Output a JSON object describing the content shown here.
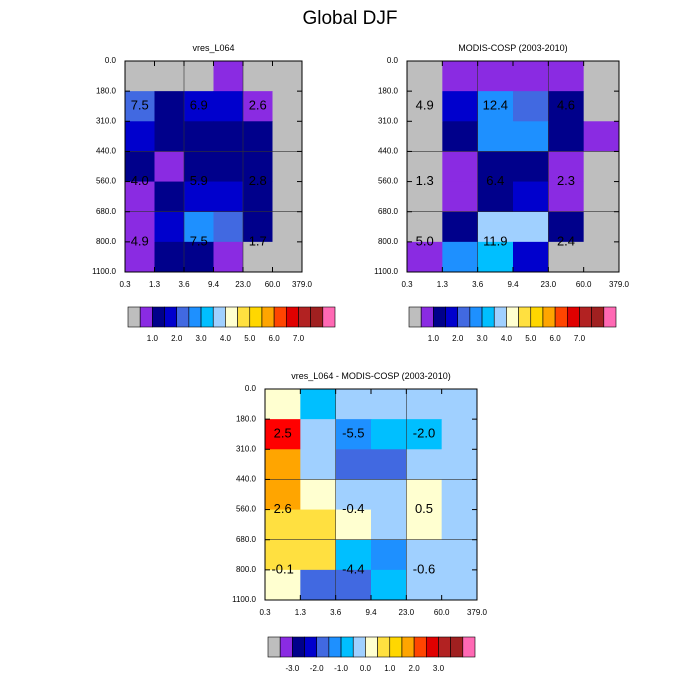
{
  "figure": {
    "title": "Global DJF"
  },
  "chart_data": [
    {
      "type": "heatmap",
      "title": "vres_L064",
      "x_ticks": [
        "0.3",
        "1.3",
        "3.6",
        "9.4",
        "23.0",
        "60.0",
        "379.0"
      ],
      "y_ticks": [
        "0.0",
        "180.0",
        "310.0",
        "440.0",
        "560.0",
        "680.0",
        "800.0",
        "1100.0"
      ],
      "cells": [
        [
          "#bebebe",
          "#bebebe",
          "#bebebe",
          "#8a2be2",
          "#bebebe",
          "#bebebe"
        ],
        [
          "#4169e1",
          "#00008b",
          "#0000cd",
          "#0000cd",
          "#8a2be2",
          "#bebebe"
        ],
        [
          "#0000cd",
          "#00008b",
          "#00008b",
          "#00008b",
          "#00008b",
          "#bebebe"
        ],
        [
          "#00008b",
          "#8a2be2",
          "#00008b",
          "#00008b",
          "#00008b",
          "#bebebe"
        ],
        [
          "#8a2be2",
          "#00008b",
          "#0000cd",
          "#0000cd",
          "#00008b",
          "#bebebe"
        ],
        [
          "#8a2be2",
          "#0000cd",
          "#1e90ff",
          "#4169e1",
          "#00008b",
          "#bebebe"
        ],
        [
          "#8a2be2",
          "#00008b",
          "#00008b",
          "#8a2be2",
          "#bebebe",
          "#bebebe"
        ]
      ],
      "labels": [
        {
          "text": "7.5",
          "col": 0.5,
          "row": 1.5
        },
        {
          "text": "6.9",
          "col": 2.5,
          "row": 1.5
        },
        {
          "text": "2.6",
          "col": 4.5,
          "row": 1.5
        },
        {
          "text": "4.0",
          "col": 0.5,
          "row": 4.0
        },
        {
          "text": "5.9",
          "col": 2.5,
          "row": 4.0
        },
        {
          "text": "2.8",
          "col": 4.5,
          "row": 4.0
        },
        {
          "text": "4.9",
          "col": 0.5,
          "row": 6.0
        },
        {
          "text": "7.5",
          "col": 2.5,
          "row": 6.0
        },
        {
          "text": "1.7",
          "col": 4.5,
          "row": 6.0
        }
      ],
      "colorbar": {
        "colors": [
          "#bebebe",
          "#8a2be2",
          "#00008b",
          "#0000cd",
          "#4169e1",
          "#1e90ff",
          "#00bfff",
          "#a0d0ff",
          "#ffffd0",
          "#ffe040",
          "#ffd700",
          "#ffa500",
          "#ff4500",
          "#e00000",
          "#b22222",
          "#a02020",
          "#ff69b4"
        ],
        "labels": [
          {
            "text": "1.0",
            "at": 2
          },
          {
            "text": "2.0",
            "at": 4
          },
          {
            "text": "3.0",
            "at": 6
          },
          {
            "text": "4.0",
            "at": 8
          },
          {
            "text": "5.0",
            "at": 10
          },
          {
            "text": "6.0",
            "at": 12
          },
          {
            "text": "7.0",
            "at": 14
          }
        ]
      }
    },
    {
      "type": "heatmap",
      "title": "MODIS-COSP (2003-2010)",
      "x_ticks": [
        "0.3",
        "1.3",
        "3.6",
        "9.4",
        "23.0",
        "60.0",
        "379.0"
      ],
      "y_ticks": [
        "0.0",
        "180.0",
        "310.0",
        "440.0",
        "560.0",
        "680.0",
        "800.0",
        "1100.0"
      ],
      "cells": [
        [
          "#bebebe",
          "#8a2be2",
          "#8a2be2",
          "#8a2be2",
          "#8a2be2",
          "#bebebe"
        ],
        [
          "#bebebe",
          "#0000cd",
          "#1e90ff",
          "#4169e1",
          "#00008b",
          "#bebebe"
        ],
        [
          "#bebebe",
          "#00008b",
          "#1e90ff",
          "#1e90ff",
          "#00008b",
          "#8a2be2"
        ],
        [
          "#bebebe",
          "#8a2be2",
          "#00008b",
          "#00008b",
          "#8a2be2",
          "#bebebe"
        ],
        [
          "#bebebe",
          "#8a2be2",
          "#00008b",
          "#0000cd",
          "#8a2be2",
          "#bebebe"
        ],
        [
          "#bebebe",
          "#00008b",
          "#a0d0ff",
          "#a0d0ff",
          "#00008b",
          "#bebebe"
        ],
        [
          "#8a2be2",
          "#1e90ff",
          "#00bfff",
          "#0000cd",
          "#bebebe",
          "#bebebe"
        ]
      ],
      "labels": [
        {
          "text": "4.9",
          "col": 0.5,
          "row": 1.5
        },
        {
          "text": "12.4",
          "col": 2.5,
          "row": 1.5
        },
        {
          "text": "4.6",
          "col": 4.5,
          "row": 1.5
        },
        {
          "text": "1.3",
          "col": 0.5,
          "row": 4.0
        },
        {
          "text": "6.4",
          "col": 2.5,
          "row": 4.0
        },
        {
          "text": "2.3",
          "col": 4.5,
          "row": 4.0
        },
        {
          "text": "5.0",
          "col": 0.5,
          "row": 6.0
        },
        {
          "text": "11.9",
          "col": 2.5,
          "row": 6.0
        },
        {
          "text": "2.4",
          "col": 4.5,
          "row": 6.0
        }
      ],
      "colorbar": {
        "colors": [
          "#bebebe",
          "#8a2be2",
          "#00008b",
          "#0000cd",
          "#4169e1",
          "#1e90ff",
          "#00bfff",
          "#a0d0ff",
          "#ffffd0",
          "#ffe040",
          "#ffd700",
          "#ffa500",
          "#ff4500",
          "#e00000",
          "#b22222",
          "#a02020",
          "#ff69b4"
        ],
        "labels": [
          {
            "text": "1.0",
            "at": 2
          },
          {
            "text": "2.0",
            "at": 4
          },
          {
            "text": "3.0",
            "at": 6
          },
          {
            "text": "4.0",
            "at": 8
          },
          {
            "text": "5.0",
            "at": 10
          },
          {
            "text": "6.0",
            "at": 12
          },
          {
            "text": "7.0",
            "at": 14
          }
        ]
      }
    },
    {
      "type": "heatmap",
      "title": "vres_L064 - MODIS-COSP (2003-2010)",
      "x_ticks": [
        "0.3",
        "1.3",
        "3.6",
        "9.4",
        "23.0",
        "60.0",
        "379.0"
      ],
      "y_ticks": [
        "0.0",
        "180.0",
        "310.0",
        "440.0",
        "560.0",
        "680.0",
        "800.0",
        "1100.0"
      ],
      "cells": [
        [
          "#ffffd0",
          "#00bfff",
          "#a0d0ff",
          "#a0d0ff",
          "#a0d0ff",
          "#a0d0ff"
        ],
        [
          "#ff0000",
          "#a0d0ff",
          "#1e90ff",
          "#00bfff",
          "#00bfff",
          "#a0d0ff"
        ],
        [
          "#ffa500",
          "#a0d0ff",
          "#4169e1",
          "#4169e1",
          "#a0d0ff",
          "#a0d0ff"
        ],
        [
          "#ffa500",
          "#ffffd0",
          "#a0d0ff",
          "#a0d0ff",
          "#ffffd0",
          "#a0d0ff"
        ],
        [
          "#ffe040",
          "#ffe040",
          "#ffffd0",
          "#a0d0ff",
          "#ffffd0",
          "#a0d0ff"
        ],
        [
          "#ffe040",
          "#ffe040",
          "#00bfff",
          "#1e90ff",
          "#a0d0ff",
          "#a0d0ff"
        ],
        [
          "#ffffd0",
          "#4169e1",
          "#4169e1",
          "#00bfff",
          "#a0d0ff",
          "#a0d0ff"
        ]
      ],
      "labels": [
        {
          "text": "2.5",
          "col": 0.5,
          "row": 1.5
        },
        {
          "text": "-5.5",
          "col": 2.5,
          "row": 1.5
        },
        {
          "text": "-2.0",
          "col": 4.5,
          "row": 1.5
        },
        {
          "text": "2.6",
          "col": 0.5,
          "row": 4.0
        },
        {
          "text": "-0.4",
          "col": 2.5,
          "row": 4.0
        },
        {
          "text": "0.5",
          "col": 4.5,
          "row": 4.0
        },
        {
          "text": "-0.1",
          "col": 0.5,
          "row": 6.0
        },
        {
          "text": "-4.4",
          "col": 2.5,
          "row": 6.0
        },
        {
          "text": "-0.6",
          "col": 4.5,
          "row": 6.0
        }
      ],
      "colorbar": {
        "colors": [
          "#bebebe",
          "#8a2be2",
          "#00008b",
          "#0000cd",
          "#4169e1",
          "#1e90ff",
          "#00bfff",
          "#a0d0ff",
          "#ffffd0",
          "#ffe040",
          "#ffd700",
          "#ffa500",
          "#ff4500",
          "#e00000",
          "#b22222",
          "#a02020",
          "#ff69b4"
        ],
        "labels": [
          {
            "text": "-3.0",
            "at": 2
          },
          {
            "text": "-2.0",
            "at": 4
          },
          {
            "text": "-1.0",
            "at": 6
          },
          {
            "text": "0.0",
            "at": 8
          },
          {
            "text": "1.0",
            "at": 10
          },
          {
            "text": "2.0",
            "at": 12
          },
          {
            "text": "3.0",
            "at": 14
          }
        ]
      }
    }
  ]
}
